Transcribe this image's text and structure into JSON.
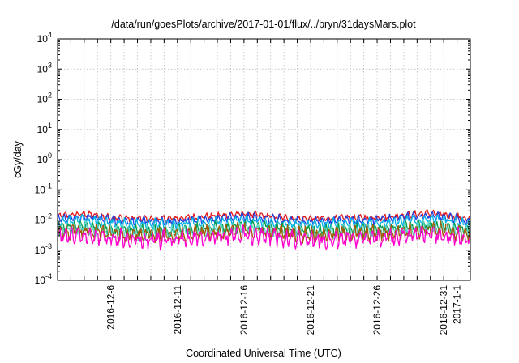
{
  "chart_data": {
    "type": "line",
    "title": "/data/run/goesPlots/archive/2017-01-01/flux/../bryn/31daysMars.plot",
    "xlabel": "Coordinated Universal Time (UTC)",
    "ylabel": "cGy/day",
    "y_scale": "log",
    "ylim": [
      0.0001,
      10000
    ],
    "xlim": [
      "2016-12-02",
      "2017-01-02"
    ],
    "y_ticks": [
      {
        "value": 0.0001,
        "base": "10",
        "exp": "-4"
      },
      {
        "value": 0.001,
        "base": "10",
        "exp": "-3"
      },
      {
        "value": 0.01,
        "base": "10",
        "exp": "-2"
      },
      {
        "value": 0.1,
        "base": "10",
        "exp": "-1"
      },
      {
        "value": 1,
        "base": "10",
        "exp": "0"
      },
      {
        "value": 10,
        "base": "10",
        "exp": "1"
      },
      {
        "value": 100,
        "base": "10",
        "exp": "2"
      },
      {
        "value": 1000,
        "base": "10",
        "exp": "3"
      },
      {
        "value": 10000,
        "base": "10",
        "exp": "4"
      }
    ],
    "x_tick_labels": [
      "2016-12-6",
      "2016-12-11",
      "2016-12-16",
      "2016-12-21",
      "2016-12-26",
      "2016-12-31",
      "2017-1-1"
    ],
    "x_tick_dates": [
      "2016-12-06",
      "2016-12-11",
      "2016-12-16",
      "2016-12-21",
      "2016-12-26",
      "2016-12-31",
      "2017-01-01"
    ],
    "grid": true,
    "legend": "none",
    "x": [
      "2016-12-02",
      "2016-12-04",
      "2016-12-06",
      "2016-12-08",
      "2016-12-10",
      "2016-12-12",
      "2016-12-14",
      "2016-12-16",
      "2016-12-18",
      "2016-12-20",
      "2016-12-22",
      "2016-12-24",
      "2016-12-26",
      "2016-12-28",
      "2016-12-30",
      "2017-01-01",
      "2017-01-02"
    ],
    "series": [
      {
        "color": "#e41a1c",
        "values": [
          0.013,
          0.016,
          0.012,
          0.011,
          0.011,
          0.012,
          0.014,
          0.016,
          0.013,
          0.011,
          0.011,
          0.012,
          0.012,
          0.014,
          0.017,
          0.013,
          0.01
        ]
      },
      {
        "color": "#1f3fe0",
        "values": [
          0.011,
          0.013,
          0.01,
          0.009,
          0.009,
          0.01,
          0.011,
          0.013,
          0.011,
          0.009,
          0.009,
          0.01,
          0.01,
          0.012,
          0.014,
          0.011,
          0.0085
        ]
      },
      {
        "color": "#00b4e6",
        "values": [
          0.0085,
          0.01,
          0.0078,
          0.0072,
          0.0072,
          0.0078,
          0.0088,
          0.01,
          0.0085,
          0.0072,
          0.0072,
          0.0078,
          0.0078,
          0.0092,
          0.011,
          0.0085,
          0.0068
        ]
      },
      {
        "color": "#00a050",
        "values": [
          0.0055,
          0.0062,
          0.0048,
          0.0045,
          0.0045,
          0.0048,
          0.0055,
          0.0062,
          0.0053,
          0.0045,
          0.0045,
          0.0048,
          0.0048,
          0.0056,
          0.0068,
          0.0053,
          0.0042
        ]
      },
      {
        "color": "#5ad2c8",
        "values": [
          0.0045,
          0.0052,
          0.0041,
          0.0038,
          0.0038,
          0.0041,
          0.0046,
          0.0052,
          0.0045,
          0.0038,
          0.0038,
          0.0041,
          0.0041,
          0.0047,
          0.0057,
          0.0045,
          0.0036
        ]
      },
      {
        "color": "#a05a00",
        "values": [
          0.004,
          0.0046,
          0.0036,
          0.0034,
          0.0034,
          0.0036,
          0.004,
          0.0046,
          0.004,
          0.0034,
          0.0034,
          0.0036,
          0.0036,
          0.0042,
          0.005,
          0.004,
          0.0032
        ]
      },
      {
        "color": "#ff00cc",
        "values": [
          0.0028,
          0.0032,
          0.0024,
          0.0022,
          0.0022,
          0.0024,
          0.0028,
          0.0032,
          0.0027,
          0.0022,
          0.0022,
          0.0024,
          0.0024,
          0.0029,
          0.0035,
          0.0027,
          0.0021
        ]
      }
    ]
  }
}
